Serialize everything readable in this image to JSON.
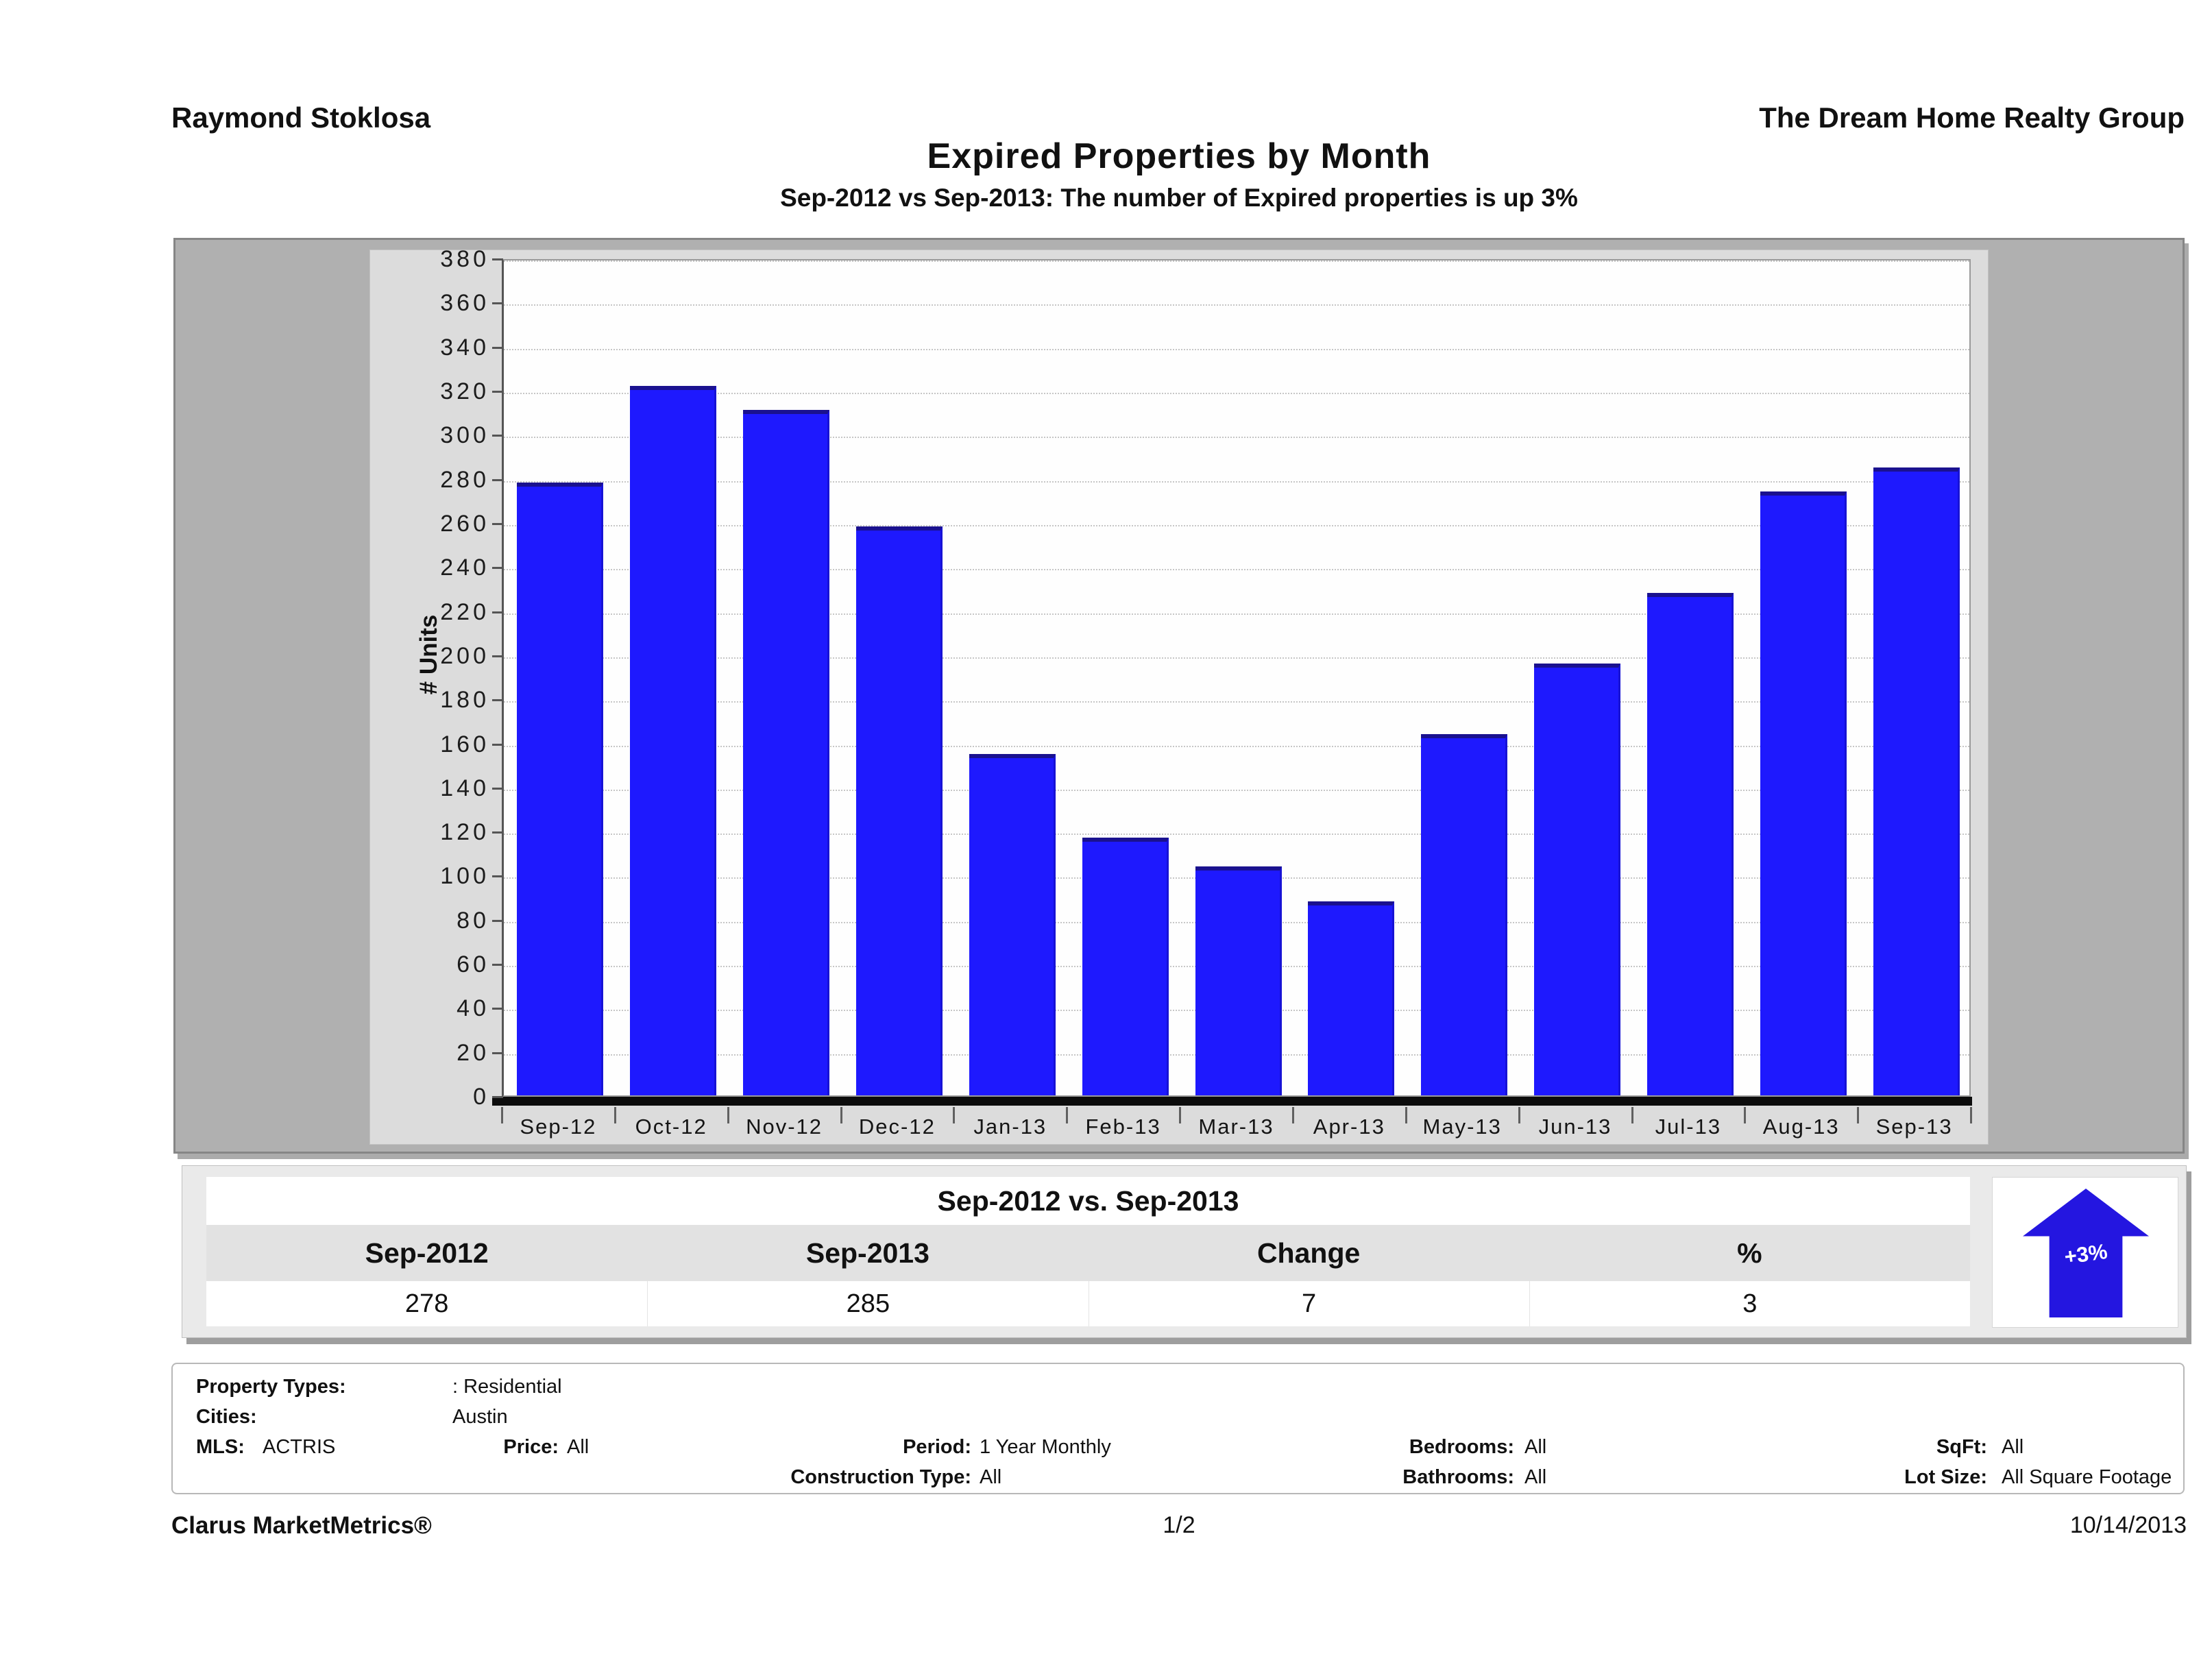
{
  "header": {
    "agent_name": "Raymond Stoklosa",
    "company": "The Dream Home Realty Group"
  },
  "title": "Expired Properties by Month",
  "subtitle": "Sep-2012 vs Sep-2013: The number of Expired  properties is up 3%",
  "chart_data": {
    "type": "bar",
    "title": "Expired Properties by Month",
    "categories": [
      "Sep-12",
      "Oct-12",
      "Nov-12",
      "Dec-12",
      "Jan-13",
      "Feb-13",
      "Mar-13",
      "Apr-13",
      "May-13",
      "Jun-13",
      "Jul-13",
      "Aug-13",
      "Sep-13"
    ],
    "values": [
      278,
      322,
      311,
      258,
      155,
      117,
      104,
      88,
      164,
      196,
      228,
      274,
      285
    ],
    "xlabel": "",
    "ylabel": "# Units",
    "ylim": [
      0,
      380
    ],
    "ytick_step": 20,
    "grid": "horizontal-dotted",
    "bar_color": "#1e19fe",
    "legend": "none"
  },
  "summary_table": {
    "title": "Sep-2012 vs. Sep-2013",
    "columns": [
      "Sep-2012",
      "Sep-2013",
      "Change",
      "%"
    ],
    "values": [
      "278",
      "285",
      "7",
      "3"
    ],
    "badge": {
      "label": "+3%",
      "direction": "up",
      "color": "#2416e0"
    }
  },
  "filters": {
    "property_types_label": "Property Types:",
    "property_types": ": Residential",
    "cities_label": "Cities:",
    "cities": "Austin",
    "mls_label": "MLS:",
    "mls": "ACTRIS",
    "price_label": "Price:",
    "price": "All",
    "period_label": "Period:",
    "period": "1 Year Monthly",
    "construction_label": "Construction Type:",
    "construction": "All",
    "bedrooms_label": "Bedrooms:",
    "bedrooms": "All",
    "bathrooms_label": "Bathrooms:",
    "bathrooms": "All",
    "sqft_label": "SqFt:",
    "sqft": "All",
    "lot_label": "Lot Size:",
    "lot": "All Square Footage"
  },
  "footer": {
    "brand": "Clarus MarketMetrics®",
    "page": "1/2",
    "date": "10/14/2013"
  }
}
